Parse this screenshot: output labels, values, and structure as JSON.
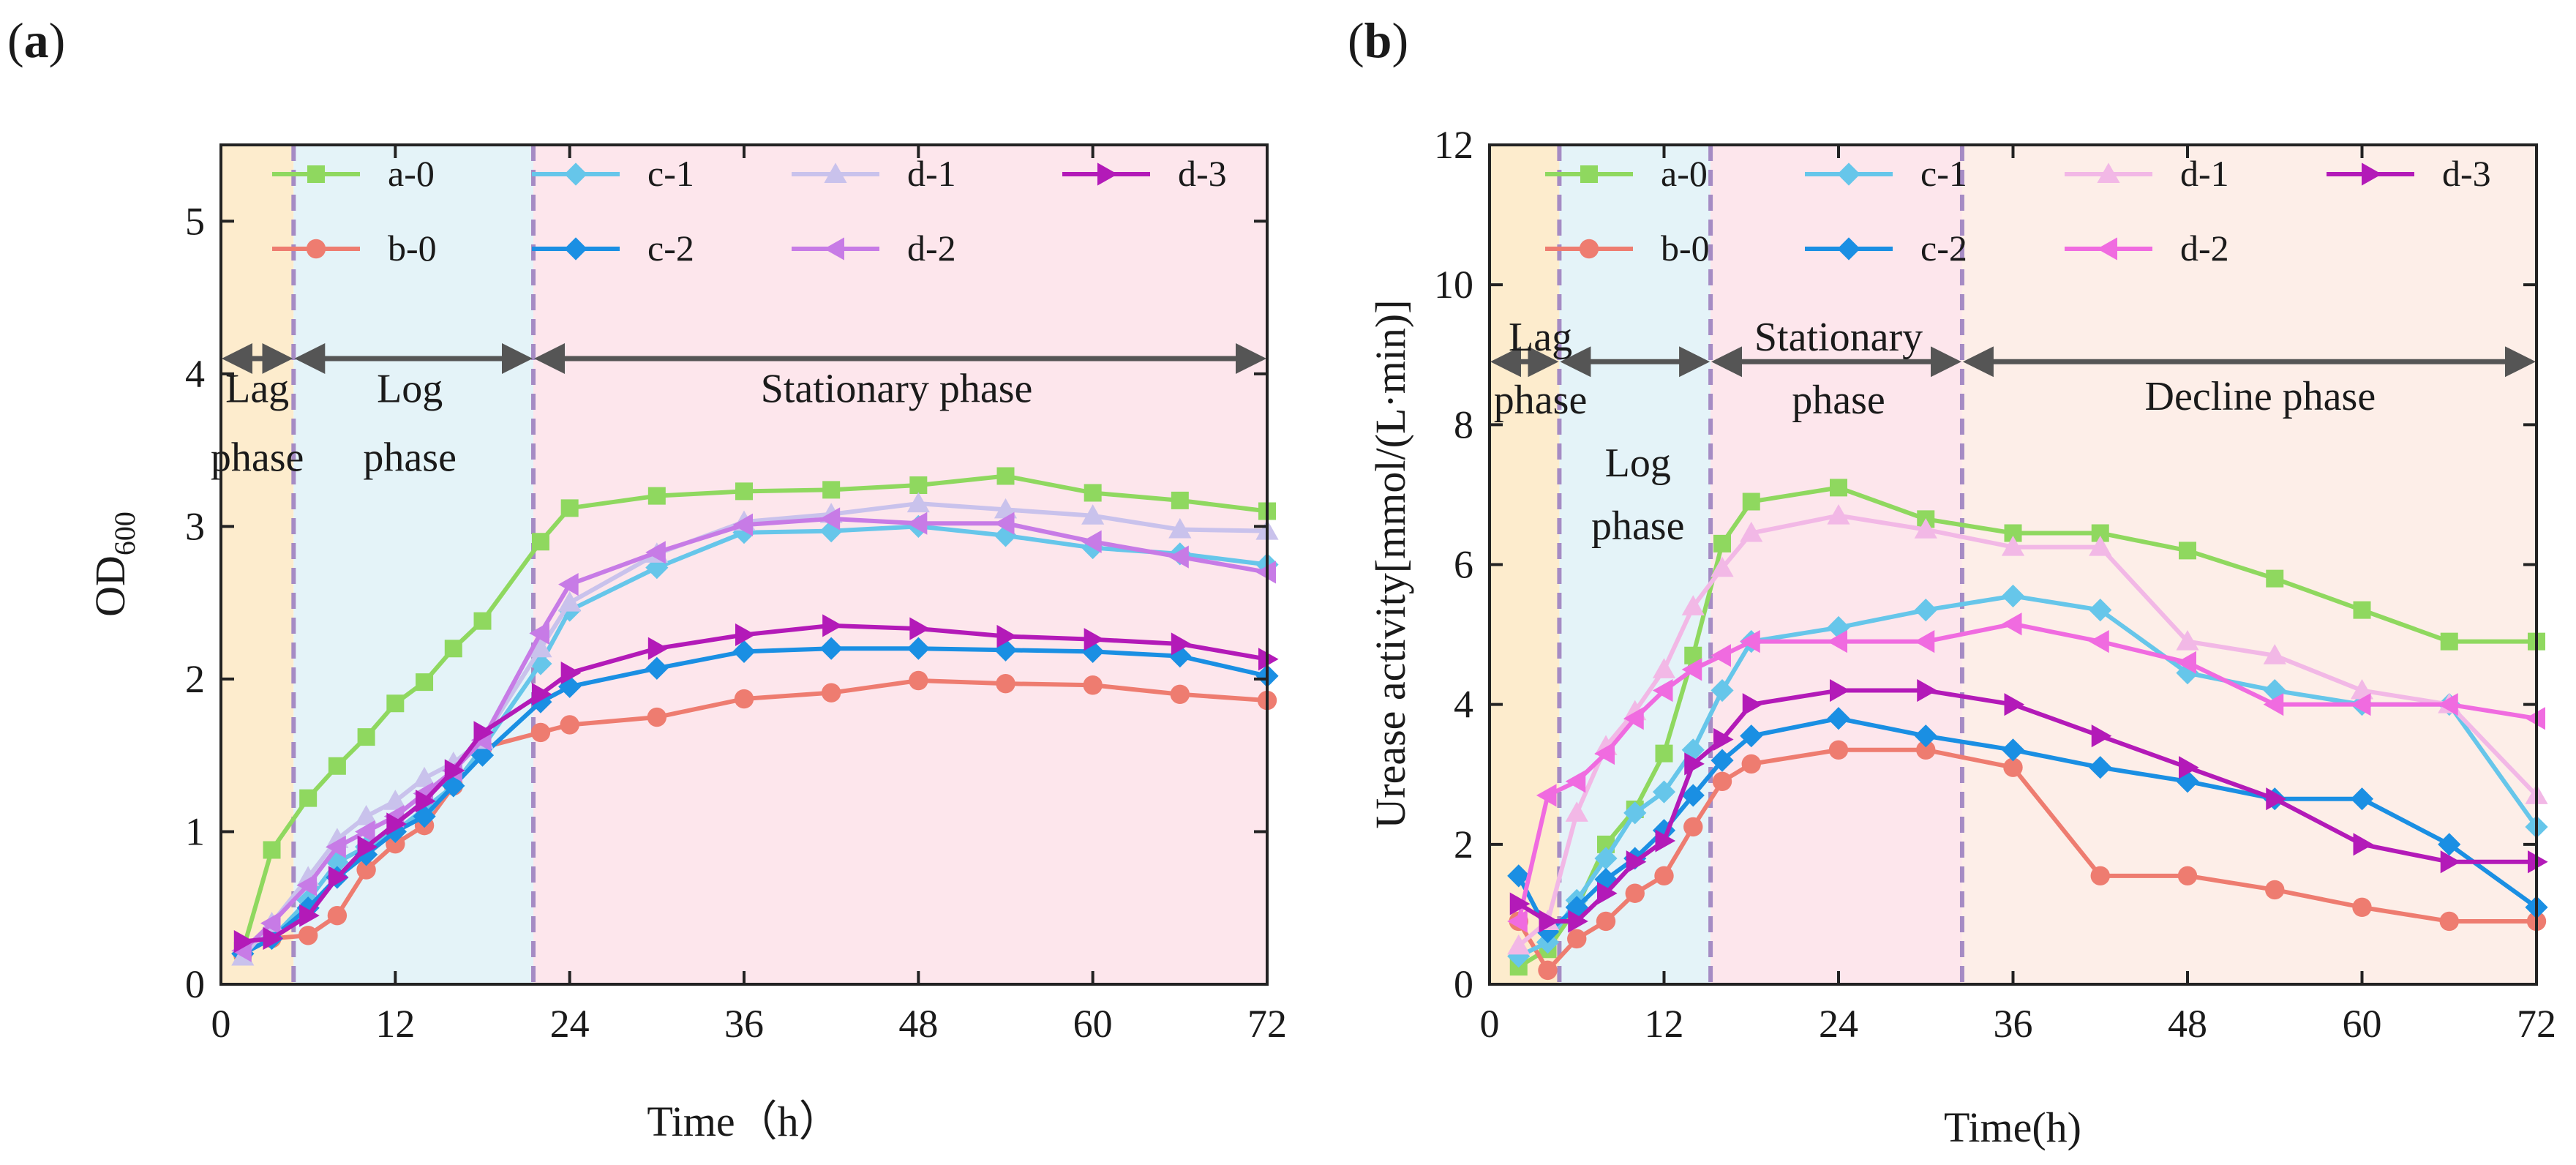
{
  "chart_data": [
    {
      "type": "line",
      "panel_label": "(a)",
      "panel_letter": "a",
      "xlabel": "Time（h）",
      "ylabel_main": "OD",
      "ylabel_sub": "600",
      "xlim": [
        0,
        72
      ],
      "ylim": [
        0,
        5.5
      ],
      "xticks": [
        0,
        12,
        24,
        36,
        48,
        60,
        72
      ],
      "yticks": [
        0,
        1,
        2,
        3,
        4,
        5
      ],
      "legend_position": "top",
      "phase_arrow_y": 4.1,
      "phases": [
        {
          "name": "Lag phase",
          "lines": [
            "Lag",
            "phase"
          ],
          "x0": 0,
          "x1": 5,
          "color": "#fdeccd",
          "label_x": 2.5,
          "label_ys": [
            3.9,
            3.45
          ]
        },
        {
          "name": "Log phase",
          "lines": [
            "Log",
            "phase"
          ],
          "x0": 5,
          "x1": 21.5,
          "color": "#e4f3f8",
          "label_x": 13,
          "label_ys": [
            3.9,
            3.45
          ]
        },
        {
          "name": "Stationary phase",
          "lines": [
            "Stationary phase"
          ],
          "x0": 21.5,
          "x1": 72,
          "color": "#fde6ec",
          "label_x": 46.5,
          "label_ys": [
            3.9
          ]
        }
      ],
      "boundaries": [
        5,
        21.5
      ],
      "series": [
        {
          "name": "a-0",
          "color": "#8fd85f",
          "marker": "square",
          "x": [
            1.5,
            3.5,
            6,
            8,
            10,
            12,
            14,
            16,
            18,
            22,
            24,
            30,
            36,
            42,
            48,
            54,
            60,
            66,
            72
          ],
          "y": [
            0.22,
            0.88,
            1.22,
            1.43,
            1.62,
            1.84,
            1.98,
            2.2,
            2.38,
            2.9,
            3.12,
            3.2,
            3.23,
            3.24,
            3.27,
            3.33,
            3.22,
            3.17,
            3.1
          ]
        },
        {
          "name": "b-0",
          "color": "#ee7c70",
          "marker": "circle",
          "x": [
            1.5,
            3.5,
            6,
            8,
            10,
            12,
            14,
            16,
            18,
            22,
            24,
            30,
            36,
            42,
            48,
            54,
            60,
            66,
            72
          ],
          "y": [
            0.2,
            0.3,
            0.32,
            0.45,
            0.75,
            0.92,
            1.04,
            1.3,
            1.55,
            1.65,
            1.7,
            1.75,
            1.87,
            1.91,
            1.99,
            1.97,
            1.96,
            1.9,
            1.86
          ]
        },
        {
          "name": "c-1",
          "color": "#66c6ea",
          "marker": "diamond",
          "x": [
            1.5,
            3.5,
            6,
            8,
            10,
            12,
            14,
            16,
            18,
            22,
            24,
            30,
            36,
            42,
            48,
            54,
            60,
            66,
            72
          ],
          "y": [
            0.2,
            0.3,
            0.55,
            0.8,
            0.9,
            1.0,
            1.15,
            1.3,
            1.55,
            2.1,
            2.45,
            2.73,
            2.96,
            2.97,
            3.0,
            2.94,
            2.86,
            2.82,
            2.75
          ]
        },
        {
          "name": "c-2",
          "color": "#1a8fe3",
          "marker": "diamond",
          "x": [
            1.5,
            3.5,
            6,
            8,
            10,
            12,
            14,
            16,
            18,
            22,
            24,
            30,
            36,
            42,
            48,
            54,
            60,
            66,
            72
          ],
          "y": [
            0.2,
            0.3,
            0.5,
            0.7,
            0.85,
            1.0,
            1.1,
            1.3,
            1.5,
            1.85,
            1.95,
            2.07,
            2.18,
            2.2,
            2.2,
            2.19,
            2.18,
            2.15,
            2.02
          ]
        },
        {
          "name": "d-1",
          "color": "#c9c2ec",
          "marker": "triangle-up",
          "x": [
            1.5,
            3.5,
            6,
            8,
            10,
            12,
            14,
            16,
            18,
            22,
            24,
            30,
            36,
            42,
            48,
            54,
            60,
            66,
            72
          ],
          "y": [
            0.18,
            0.4,
            0.7,
            0.95,
            1.1,
            1.2,
            1.35,
            1.45,
            1.6,
            2.2,
            2.5,
            2.82,
            3.03,
            3.08,
            3.15,
            3.11,
            3.07,
            2.98,
            2.97
          ]
        },
        {
          "name": "d-2",
          "color": "#c77be6",
          "marker": "triangle-left",
          "x": [
            1.5,
            3.5,
            6,
            8,
            10,
            12,
            14,
            16,
            18,
            22,
            24,
            30,
            36,
            42,
            48,
            54,
            60,
            66,
            72
          ],
          "y": [
            0.22,
            0.4,
            0.65,
            0.9,
            1.0,
            1.1,
            1.25,
            1.4,
            1.6,
            2.3,
            2.62,
            2.83,
            3.01,
            3.05,
            3.02,
            3.02,
            2.9,
            2.8,
            2.7
          ]
        },
        {
          "name": "d-3",
          "color": "#b31ab8",
          "marker": "triangle-right",
          "x": [
            1.5,
            3.5,
            6,
            8,
            10,
            12,
            14,
            16,
            18,
            22,
            24,
            30,
            36,
            42,
            48,
            54,
            60,
            66,
            72
          ],
          "y": [
            0.28,
            0.3,
            0.45,
            0.7,
            0.9,
            1.05,
            1.2,
            1.4,
            1.65,
            1.9,
            2.04,
            2.2,
            2.29,
            2.35,
            2.33,
            2.28,
            2.26,
            2.23,
            2.13
          ]
        }
      ]
    },
    {
      "type": "line",
      "panel_label": "(b)",
      "panel_letter": "b",
      "xlabel": "Time(h)",
      "ylabel_main": "Urease activity[mmol/(L·min)]",
      "ylabel_sub": "",
      "xlim": [
        0,
        72
      ],
      "ylim": [
        0,
        12
      ],
      "xticks": [
        0,
        12,
        24,
        36,
        48,
        60,
        72
      ],
      "yticks": [
        0,
        2,
        4,
        6,
        8,
        10,
        12
      ],
      "legend_position": "top",
      "phase_arrow_y": 8.9,
      "phases": [
        {
          "name": "Lag phase",
          "lines": [
            "Lag",
            "phase"
          ],
          "x0": 0,
          "x1": 4.8,
          "color": "#fdeccd",
          "label_x": 3.5,
          "label_ys": [
            9.25,
            8.35
          ]
        },
        {
          "name": "Log phase",
          "lines": [
            "Log",
            "phase"
          ],
          "x0": 4.8,
          "x1": 15.2,
          "color": "#e4f3f8",
          "label_x": 10.2,
          "label_ys": [
            7.45,
            6.55
          ]
        },
        {
          "name": "Stationary phase",
          "lines": [
            "Stationary",
            "phase"
          ],
          "x0": 15.2,
          "x1": 32.5,
          "color": "#fde6ec",
          "label_x": 24,
          "label_ys": [
            9.25,
            8.35
          ]
        },
        {
          "name": "Decline phase",
          "lines": [
            "Decline phase"
          ],
          "x0": 32.5,
          "x1": 72,
          "color": "#fdeee8",
          "label_x": 53,
          "label_ys": [
            8.4
          ]
        }
      ],
      "boundaries": [
        4.8,
        15.2,
        32.5
      ],
      "series": [
        {
          "name": "a-0",
          "color": "#8fd85f",
          "marker": "square",
          "x": [
            2,
            4,
            6,
            8,
            10,
            12,
            14,
            16,
            18,
            24,
            30,
            36,
            42,
            48,
            54,
            60,
            66,
            72
          ],
          "y": [
            0.25,
            0.5,
            1.1,
            2.0,
            2.5,
            3.3,
            4.7,
            6.3,
            6.9,
            7.1,
            6.65,
            6.45,
            6.45,
            6.2,
            5.8,
            5.35,
            4.9,
            4.9
          ]
        },
        {
          "name": "b-0",
          "color": "#ee7c70",
          "marker": "circle",
          "x": [
            2,
            4,
            6,
            8,
            10,
            12,
            14,
            16,
            18,
            24,
            30,
            36,
            42,
            48,
            54,
            60,
            66,
            72
          ],
          "y": [
            0.9,
            0.2,
            0.65,
            0.9,
            1.3,
            1.55,
            2.25,
            2.9,
            3.15,
            3.35,
            3.35,
            3.1,
            1.55,
            1.55,
            1.35,
            1.1,
            0.9,
            0.9
          ]
        },
        {
          "name": "c-1",
          "color": "#66c6ea",
          "marker": "diamond",
          "x": [
            2,
            4,
            6,
            8,
            10,
            12,
            14,
            16,
            18,
            24,
            30,
            36,
            42,
            48,
            54,
            60,
            66,
            72
          ],
          "y": [
            0.4,
            0.6,
            1.2,
            1.8,
            2.45,
            2.75,
            3.35,
            4.2,
            4.9,
            5.1,
            5.35,
            5.55,
            5.35,
            4.45,
            4.2,
            4.0,
            4.0,
            2.25
          ]
        },
        {
          "name": "c-2",
          "color": "#1a8fe3",
          "marker": "diamond",
          "x": [
            2,
            4,
            6,
            8,
            10,
            12,
            14,
            16,
            18,
            24,
            30,
            36,
            42,
            48,
            54,
            60,
            66,
            72
          ],
          "y": [
            1.55,
            0.75,
            1.1,
            1.5,
            1.8,
            2.2,
            2.7,
            3.2,
            3.55,
            3.8,
            3.55,
            3.35,
            3.1,
            2.9,
            2.65,
            2.65,
            2.0,
            1.1
          ]
        },
        {
          "name": "d-1",
          "color": "#f2b8e6",
          "marker": "triangle-up",
          "x": [
            2,
            4,
            6,
            8,
            10,
            12,
            14,
            16,
            18,
            24,
            30,
            36,
            42,
            48,
            54,
            60,
            66,
            72
          ],
          "y": [
            0.55,
            0.9,
            2.45,
            3.4,
            3.9,
            4.5,
            5.4,
            5.95,
            6.45,
            6.7,
            6.5,
            6.25,
            6.25,
            4.9,
            4.7,
            4.2,
            4.0,
            2.7
          ]
        },
        {
          "name": "d-2",
          "color": "#f06be0",
          "marker": "triangle-left",
          "x": [
            2,
            4,
            6,
            8,
            10,
            12,
            14,
            16,
            18,
            24,
            30,
            36,
            42,
            48,
            54,
            60,
            66,
            72
          ],
          "y": [
            0.9,
            2.7,
            2.9,
            3.3,
            3.8,
            4.2,
            4.5,
            4.7,
            4.9,
            4.9,
            4.9,
            5.15,
            4.9,
            4.6,
            4.0,
            4.0,
            4.0,
            3.8
          ]
        },
        {
          "name": "d-3",
          "color": "#b31ab8",
          "marker": "triangle-right",
          "x": [
            2,
            4,
            6,
            8,
            10,
            12,
            14,
            16,
            18,
            24,
            30,
            36,
            42,
            48,
            54,
            60,
            66,
            72
          ],
          "y": [
            1.15,
            0.9,
            0.9,
            1.3,
            1.75,
            2.05,
            3.15,
            3.5,
            4.0,
            4.2,
            4.2,
            4.0,
            3.55,
            3.1,
            2.65,
            2.0,
            1.75,
            1.75
          ]
        }
      ]
    }
  ]
}
